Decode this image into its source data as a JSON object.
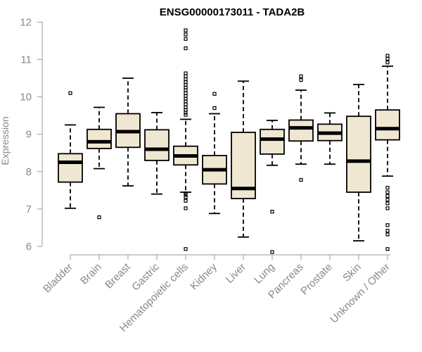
{
  "chart_data": {
    "type": "boxplot",
    "title": "ENSG00000173011 - TADA2B",
    "xlabel": "",
    "ylabel": "Expression",
    "ylim": [
      5.8,
      12.2
    ],
    "yticks": [
      6,
      7,
      8,
      9,
      10,
      11,
      12
    ],
    "grid": false,
    "categories": [
      "Bladder",
      "Brain",
      "Breast",
      "Gastric",
      "Hematopoietic cells",
      "Kidney",
      "Liver",
      "Lung",
      "Pancreas",
      "Prostate",
      "Skin",
      "Unknown / Other"
    ],
    "boxes": [
      {
        "category": "Bladder",
        "whisker_low": 7.02,
        "q1": 7.72,
        "median": 8.25,
        "q3": 8.48,
        "whisker_high": 9.25,
        "outliers": [
          10.1
        ]
      },
      {
        "category": "Brain",
        "whisker_low": 8.08,
        "q1": 8.62,
        "median": 8.8,
        "q3": 9.13,
        "whisker_high": 9.72,
        "outliers": [
          6.78
        ]
      },
      {
        "category": "Breast",
        "whisker_low": 7.62,
        "q1": 8.65,
        "median": 9.07,
        "q3": 9.55,
        "whisker_high": 10.5,
        "outliers": []
      },
      {
        "category": "Gastric",
        "whisker_low": 7.4,
        "q1": 8.3,
        "median": 8.6,
        "q3": 9.12,
        "whisker_high": 9.58,
        "outliers": []
      },
      {
        "category": "Hematopoietic cells",
        "whisker_low": 7.45,
        "q1": 8.18,
        "median": 8.42,
        "q3": 8.68,
        "whisker_high": 9.4,
        "outliers": [
          5.93,
          7.02,
          7.22,
          7.32,
          7.38,
          7.42,
          9.52,
          9.58,
          9.65,
          9.72,
          9.8,
          9.88,
          9.95,
          10.02,
          10.1,
          10.18,
          10.25,
          10.32,
          10.4,
          10.47,
          10.55,
          10.63,
          11.3,
          11.55,
          11.67,
          11.78
        ]
      },
      {
        "category": "Kidney",
        "whisker_low": 6.88,
        "q1": 7.67,
        "median": 8.05,
        "q3": 8.43,
        "whisker_high": 9.55,
        "outliers": [
          9.7,
          10.08
        ]
      },
      {
        "category": "Liver",
        "whisker_low": 6.25,
        "q1": 7.28,
        "median": 7.55,
        "q3": 9.05,
        "whisker_high": 10.42,
        "outliers": []
      },
      {
        "category": "Lung",
        "whisker_low": 8.17,
        "q1": 8.47,
        "median": 8.87,
        "q3": 9.13,
        "whisker_high": 9.37,
        "outliers": [
          5.85,
          6.93
        ]
      },
      {
        "category": "Pancreas",
        "whisker_low": 8.2,
        "q1": 8.82,
        "median": 9.17,
        "q3": 9.38,
        "whisker_high": 10.18,
        "outliers": [
          7.78,
          10.45,
          10.55
        ]
      },
      {
        "category": "Prostate",
        "whisker_low": 8.2,
        "q1": 8.83,
        "median": 9.03,
        "q3": 9.27,
        "whisker_high": 9.57,
        "outliers": []
      },
      {
        "category": "Skin",
        "whisker_low": 6.15,
        "q1": 7.45,
        "median": 8.28,
        "q3": 9.48,
        "whisker_high": 10.33,
        "outliers": []
      },
      {
        "category": "Unknown / Other",
        "whisker_low": 7.88,
        "q1": 8.85,
        "median": 9.15,
        "q3": 9.65,
        "whisker_high": 10.82,
        "outliers": [
          5.93,
          6.32,
          6.42,
          6.57,
          7.02,
          7.15,
          7.25,
          7.35,
          7.45,
          7.57,
          10.92,
          11.02,
          11.1
        ]
      }
    ],
    "colors": {
      "box_fill": "#efe7d1",
      "box_stroke": "#000000",
      "axis": "#999999",
      "tick_text": "#888888"
    }
  }
}
